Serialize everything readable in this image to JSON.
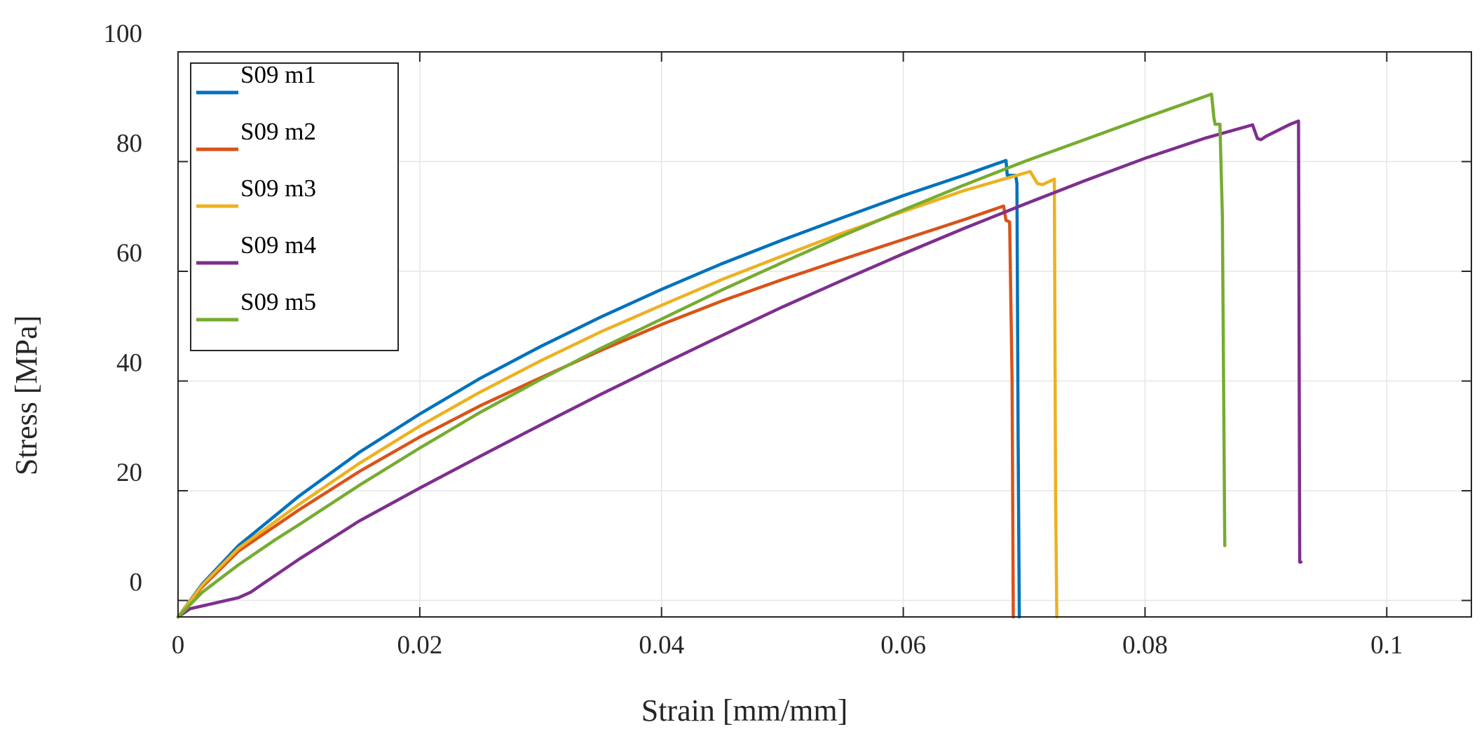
{
  "chart_data": {
    "type": "line",
    "title": "",
    "xlabel": "Strain [mm/mm]",
    "ylabel": "Stress [MPa]",
    "xlim": [
      0,
      0.107
    ],
    "ylim": [
      -3,
      100
    ],
    "xticks": [
      0,
      0.02,
      0.04,
      0.06,
      0.08,
      0.1
    ],
    "xtick_labels": [
      "0",
      "0.02",
      "0.04",
      "0.06",
      "0.08",
      "0.1"
    ],
    "yticks": [
      0,
      20,
      40,
      60,
      80,
      100
    ],
    "ytick_labels": [
      "0",
      "20",
      "40",
      "60",
      "80",
      "100"
    ],
    "grid": true,
    "legend_position": "top-left",
    "series": [
      {
        "name": "S09 m1",
        "color": "#0072BD",
        "x": [
          0,
          0.002,
          0.005,
          0.01,
          0.015,
          0.02,
          0.025,
          0.03,
          0.035,
          0.04,
          0.045,
          0.05,
          0.055,
          0.06,
          0.065,
          0.0685,
          0.0686,
          0.0693,
          0.0694,
          0.0695,
          0.0696
        ],
        "y": [
          -3,
          3,
          10,
          19,
          27,
          34,
          40.5,
          46.3,
          51.7,
          56.7,
          61.4,
          65.7,
          69.8,
          73.8,
          77.5,
          80.2,
          77.5,
          77.5,
          76,
          30,
          -3
        ]
      },
      {
        "name": "S09 m2",
        "color": "#D95319",
        "x": [
          0,
          0.002,
          0.005,
          0.01,
          0.015,
          0.02,
          0.025,
          0.03,
          0.035,
          0.04,
          0.045,
          0.05,
          0.055,
          0.06,
          0.065,
          0.0683,
          0.0685,
          0.0688,
          0.069,
          0.0691
        ],
        "y": [
          -3,
          2.5,
          9,
          16.5,
          23.5,
          29.8,
          35.5,
          40.6,
          45.6,
          50.3,
          54.6,
          58.5,
          62.2,
          65.8,
          69.4,
          71.9,
          69.3,
          69,
          40,
          -3
        ]
      },
      {
        "name": "S09 m3",
        "color": "#EDB120",
        "x": [
          0,
          0.002,
          0.005,
          0.01,
          0.015,
          0.02,
          0.025,
          0.03,
          0.035,
          0.04,
          0.045,
          0.05,
          0.055,
          0.06,
          0.065,
          0.0705,
          0.0711,
          0.0715,
          0.0722,
          0.0725,
          0.0726,
          0.0727
        ],
        "y": [
          -3,
          2.8,
          9.5,
          17.5,
          25,
          31.8,
          38,
          43.7,
          49,
          53.8,
          58.5,
          62.8,
          67,
          70.9,
          74.7,
          78.2,
          76,
          75.8,
          76.5,
          76.8,
          20,
          -3
        ]
      },
      {
        "name": "S09 m4",
        "color": "#7E2F8E",
        "x": [
          0,
          0.001,
          0.003,
          0.005,
          0.006,
          0.007,
          0.01,
          0.015,
          0.02,
          0.025,
          0.03,
          0.035,
          0.04,
          0.045,
          0.05,
          0.055,
          0.06,
          0.065,
          0.07,
          0.075,
          0.08,
          0.085,
          0.0889,
          0.0893,
          0.0896,
          0.09,
          0.092,
          0.0927,
          0.0928,
          0.0929
        ],
        "y": [
          -3,
          -1.5,
          -0.5,
          0.5,
          1.5,
          3,
          7.5,
          14.5,
          20.5,
          26.3,
          32,
          37.6,
          43,
          48.3,
          53.5,
          58.4,
          63.2,
          67.8,
          72.2,
          76.5,
          80.6,
          84.3,
          86.7,
          84.2,
          84,
          84.6,
          86.8,
          87.4,
          7,
          7
        ]
      },
      {
        "name": "S09 m5",
        "color": "#77AC30",
        "x": [
          0,
          0.002,
          0.005,
          0.008,
          0.01,
          0.015,
          0.02,
          0.025,
          0.03,
          0.035,
          0.04,
          0.045,
          0.05,
          0.055,
          0.06,
          0.065,
          0.07,
          0.075,
          0.08,
          0.085,
          0.0855,
          0.0857,
          0.0858,
          0.0862,
          0.0864,
          0.0865,
          0.0866
        ],
        "y": [
          -3,
          1.5,
          6.5,
          11,
          13.8,
          21,
          27.8,
          34.3,
          40.3,
          46,
          51.3,
          56.6,
          61.6,
          66.5,
          71.2,
          75.7,
          80,
          84,
          88,
          91.9,
          92.3,
          88,
          86.8,
          86.8,
          70,
          40,
          10
        ]
      }
    ]
  }
}
